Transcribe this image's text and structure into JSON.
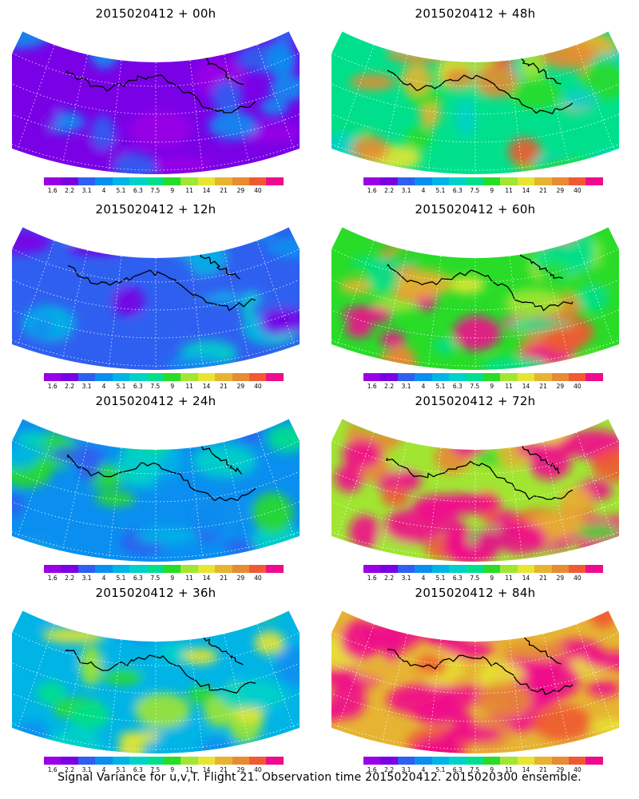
{
  "panels": [
    {
      "title": "2015020412 + 00h",
      "intensity": 0
    },
    {
      "title": "2015020412 + 48h",
      "intensity": 4
    },
    {
      "title": "2015020412 + 12h",
      "intensity": 1
    },
    {
      "title": "2015020412 + 60h",
      "intensity": 5
    },
    {
      "title": "2015020412 + 24h",
      "intensity": 2
    },
    {
      "title": "2015020412 + 72h",
      "intensity": 6
    },
    {
      "title": "2015020412 + 36h",
      "intensity": 3
    },
    {
      "title": "2015020412 + 84h",
      "intensity": 7
    }
  ],
  "colorbar": {
    "ticks": [
      "1.6",
      "2.2",
      "3.1",
      "4",
      "5.1",
      "6.3",
      "7.5",
      "9",
      "11",
      "14",
      "21",
      "29",
      "40"
    ],
    "colors": [
      "#9a00e6",
      "#7a00e6",
      "#2f5ff0",
      "#0a8ff0",
      "#00b4e6",
      "#00d2c8",
      "#00e08c",
      "#28dc28",
      "#a0e632",
      "#e6e632",
      "#e6b432",
      "#e68c32",
      "#f05a32",
      "#f00a8c"
    ]
  },
  "footer": "Signal Variance for u,v,T. Flight 21. Observation time 2015020412. 2015020300 ensemble."
}
